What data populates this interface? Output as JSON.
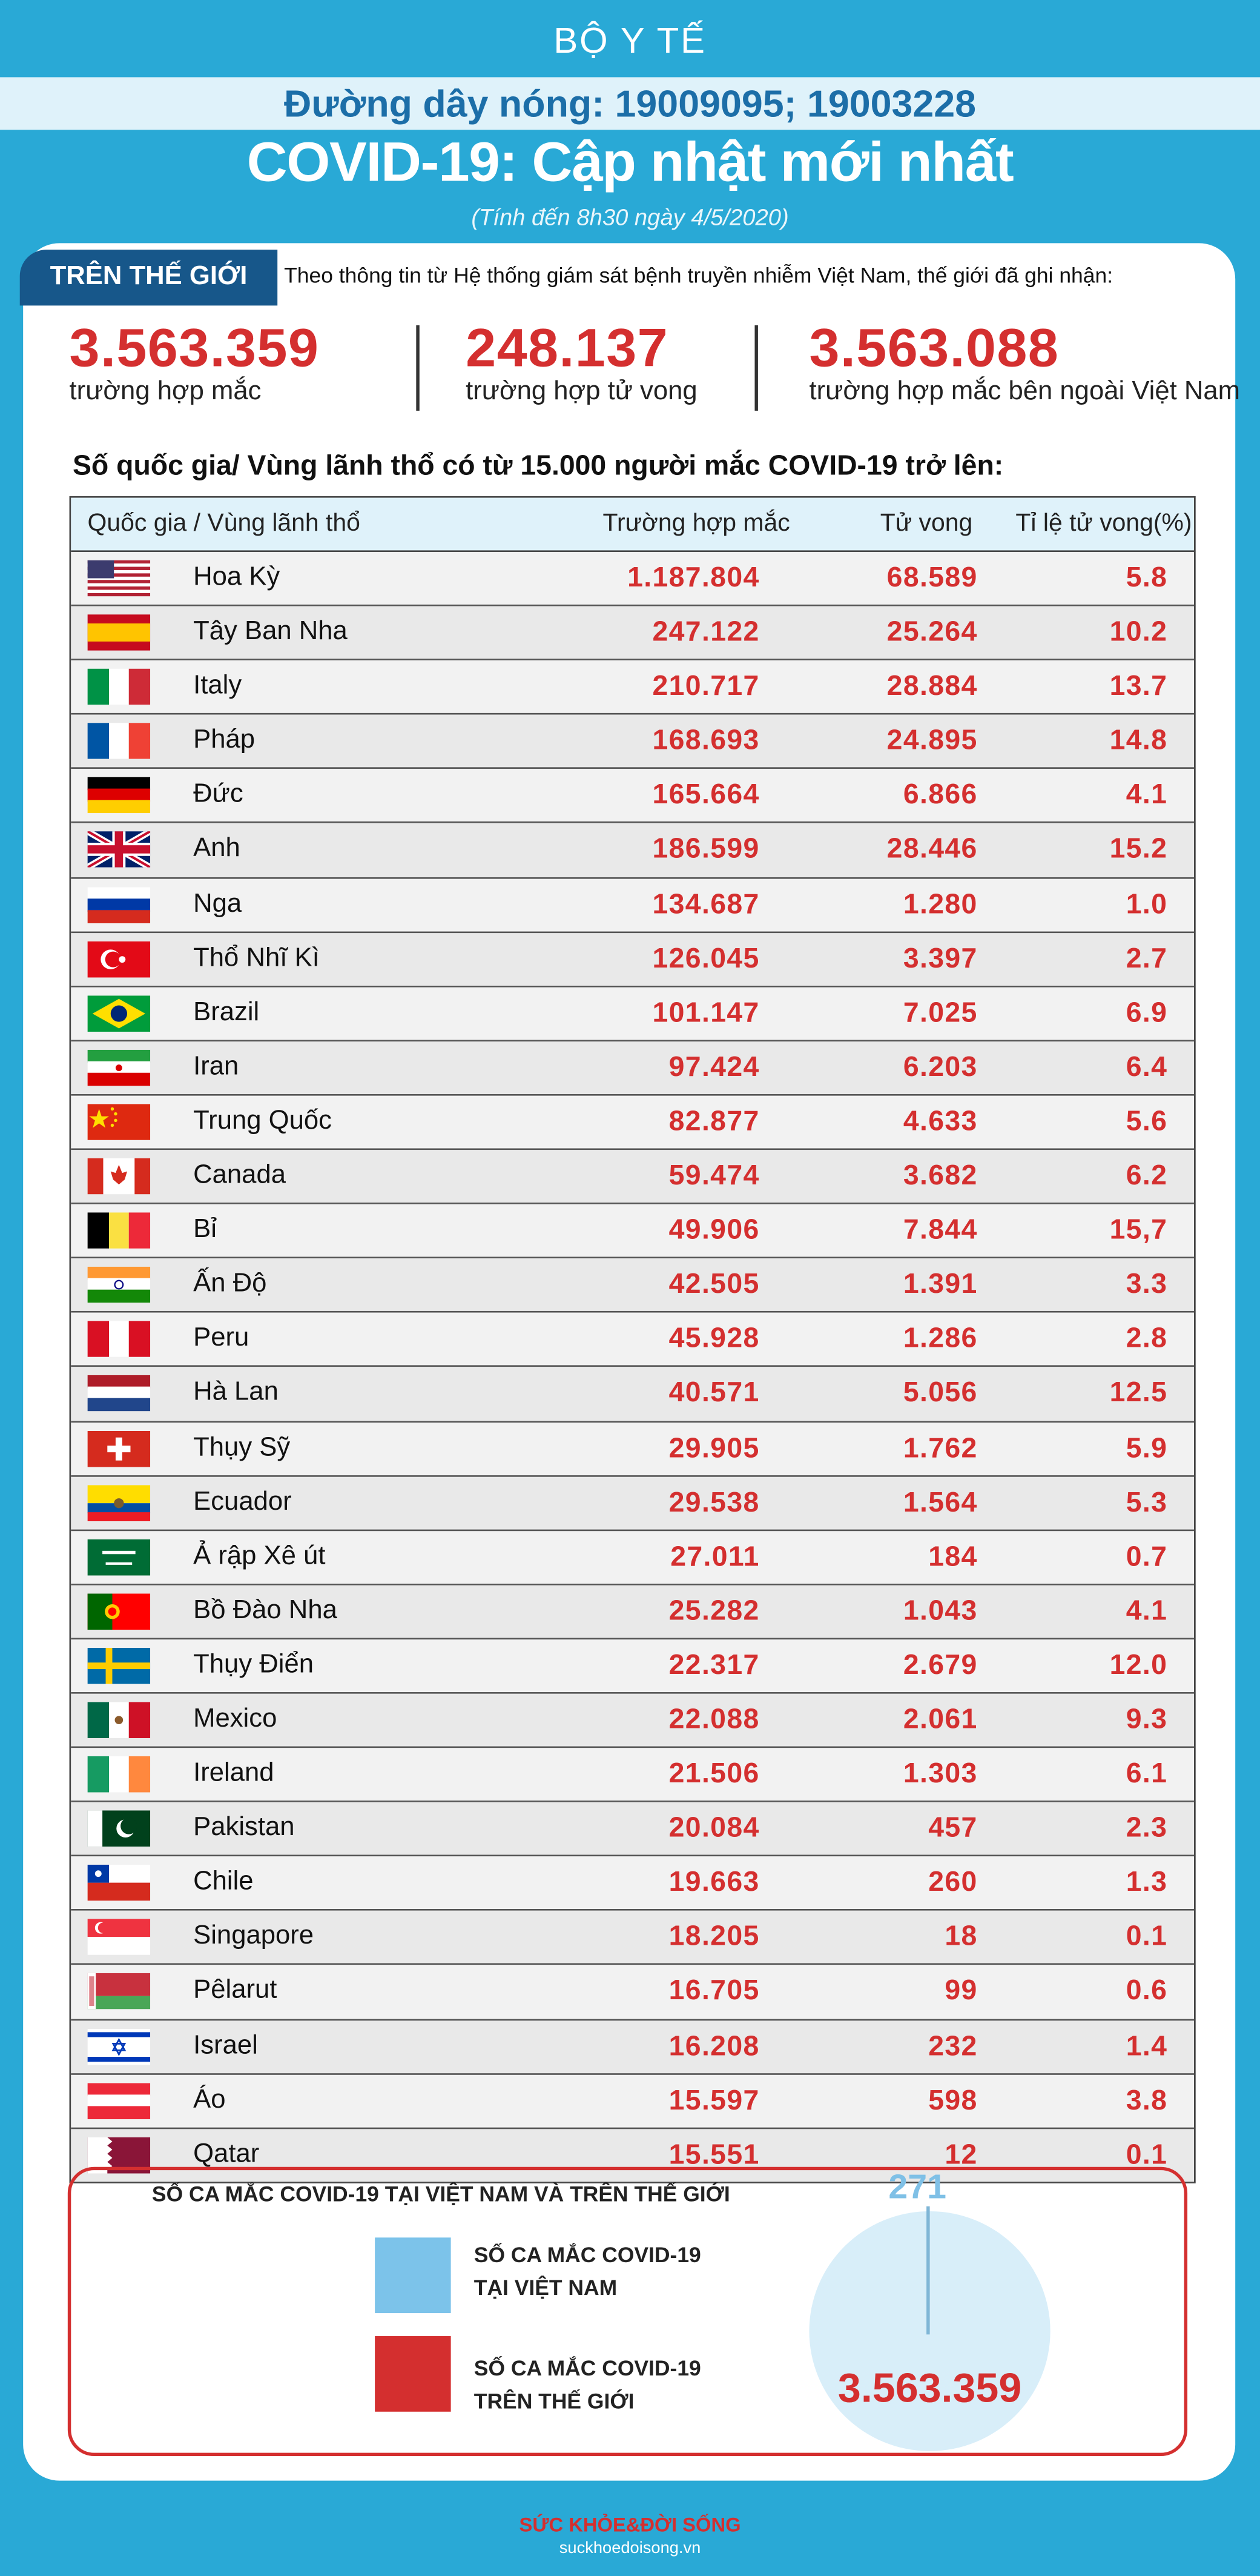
{
  "header": {
    "ministry": "BỘ Y TẾ",
    "hotline": "Đường dây nóng: 19009095; 19003228",
    "title": "COVID-19: Cập nhật mới nhất",
    "as_of": "(Tính đến 8h30 ngày 4/5/2020)"
  },
  "world": {
    "tag": "TRÊN THẾ GIỚI",
    "intro": "Theo thông tin từ Hệ thống giám sát bệnh truyền nhiễm Việt Nam, thế giới đã ghi nhận:",
    "stats": [
      {
        "value": "3.563.359",
        "label": "trường hợp mắc"
      },
      {
        "value": "248.137",
        "label": "trường hợp tử vong"
      },
      {
        "value": "3.563.088",
        "label": "trường hợp  mắc bên ngoài Việt Nam"
      }
    ]
  },
  "table": {
    "subtitle": "Số quốc gia/ Vùng lãnh thổ có từ 15.000 người  mắc COVID-19 trở lên:",
    "headers": {
      "country": "Quốc gia / Vùng lãnh thổ",
      "cases": "Trường hợp mắc",
      "deaths": "Tử vong",
      "rate": "Tỉ lệ tử vong(%)"
    },
    "rows": [
      {
        "flag": "usa-flag-icon",
        "name": "Hoa Kỳ",
        "cases": "1.187.804",
        "deaths": "68.589",
        "rate": "5.8"
      },
      {
        "flag": "spain-flag-icon",
        "name": "Tây Ban Nha",
        "cases": "247.122",
        "deaths": "25.264",
        "rate": "10.2"
      },
      {
        "flag": "italy-flag-icon",
        "name": "Italy",
        "cases": "210.717",
        "deaths": "28.884",
        "rate": "13.7"
      },
      {
        "flag": "france-flag-icon",
        "name": "Pháp",
        "cases": "168.693",
        "deaths": "24.895",
        "rate": "14.8"
      },
      {
        "flag": "germany-flag-icon",
        "name": "Đức",
        "cases": "165.664",
        "deaths": "6.866",
        "rate": "4.1"
      },
      {
        "flag": "uk-flag-icon",
        "name": "Anh",
        "cases": "186.599",
        "deaths": "28.446",
        "rate": "15.2"
      },
      {
        "flag": "russia-flag-icon",
        "name": "Nga",
        "cases": "134.687",
        "deaths": "1.280",
        "rate": "1.0"
      },
      {
        "flag": "turkey-flag-icon",
        "name": "Thổ Nhĩ Kì",
        "cases": "126.045",
        "deaths": "3.397",
        "rate": "2.7"
      },
      {
        "flag": "brazil-flag-icon",
        "name": "Brazil",
        "cases": "101.147",
        "deaths": "7.025",
        "rate": "6.9"
      },
      {
        "flag": "iran-flag-icon",
        "name": "Iran",
        "cases": "97.424",
        "deaths": "6.203",
        "rate": "6.4"
      },
      {
        "flag": "china-flag-icon",
        "name": "Trung Quốc",
        "cases": "82.877",
        "deaths": "4.633",
        "rate": "5.6"
      },
      {
        "flag": "canada-flag-icon",
        "name": "Canada",
        "cases": "59.474",
        "deaths": "3.682",
        "rate": "6.2"
      },
      {
        "flag": "belgium-flag-icon",
        "name": "Bỉ",
        "cases": "49.906",
        "deaths": "7.844",
        "rate": "15,7"
      },
      {
        "flag": "india-flag-icon",
        "name": "Ấn Độ",
        "cases": "42.505",
        "deaths": "1.391",
        "rate": "3.3"
      },
      {
        "flag": "peru-flag-icon",
        "name": "Peru",
        "cases": "45.928",
        "deaths": "1.286",
        "rate": "2.8"
      },
      {
        "flag": "netherlands-flag-icon",
        "name": "Hà Lan",
        "cases": "40.571",
        "deaths": "5.056",
        "rate": "12.5"
      },
      {
        "flag": "switzerland-flag-icon",
        "name": "Thụy Sỹ",
        "cases": "29.905",
        "deaths": "1.762",
        "rate": "5.9"
      },
      {
        "flag": "ecuador-flag-icon",
        "name": "Ecuador",
        "cases": "29.538",
        "deaths": "1.564",
        "rate": "5.3"
      },
      {
        "flag": "saudi-arabia-flag-icon",
        "name": "Ả rập Xê út",
        "cases": "27.011",
        "deaths": "184",
        "rate": "0.7"
      },
      {
        "flag": "portugal-flag-icon",
        "name": "Bồ Đào Nha",
        "cases": "25.282",
        "deaths": "1.043",
        "rate": "4.1"
      },
      {
        "flag": "sweden-flag-icon",
        "name": "Thụy Điển",
        "cases": "22.317",
        "deaths": "2.679",
        "rate": "12.0"
      },
      {
        "flag": "mexico-flag-icon",
        "name": "Mexico",
        "cases": "22.088",
        "deaths": "2.061",
        "rate": "9.3"
      },
      {
        "flag": "ireland-flag-icon",
        "name": "Ireland",
        "cases": "21.506",
        "deaths": "1.303",
        "rate": "6.1"
      },
      {
        "flag": "pakistan-flag-icon",
        "name": "Pakistan",
        "cases": "20.084",
        "deaths": "457",
        "rate": "2.3"
      },
      {
        "flag": "chile-flag-icon",
        "name": "Chile",
        "cases": "19.663",
        "deaths": "260",
        "rate": "1.3"
      },
      {
        "flag": "singapore-flag-icon",
        "name": "Singapore",
        "cases": "18.205",
        "deaths": "18",
        "rate": "0.1"
      },
      {
        "flag": "belarus-flag-icon",
        "name": "Pêlarut",
        "cases": "16.705",
        "deaths": "99",
        "rate": "0.6"
      },
      {
        "flag": "israel-flag-icon",
        "name": "Israel",
        "cases": "16.208",
        "deaths": "232",
        "rate": "1.4"
      },
      {
        "flag": "austria-flag-icon",
        "name": "Áo",
        "cases": "15.597",
        "deaths": "598",
        "rate": "3.8"
      },
      {
        "flag": "qatar-flag-icon",
        "name": "Qatar",
        "cases": "15.551",
        "deaths": "12",
        "rate": "0.1"
      }
    ]
  },
  "comparison": {
    "title": "SỐ CA MẮC COVID-19 TẠI VIỆT NAM VÀ TRÊN THẾ GIỚI",
    "legend_vn": "SỐ CA MẮC COVID-19 TẠI VIỆT NAM",
    "legend_world": "SỐ CA MẮC COVID-19 TRÊN THẾ GIỚI",
    "vn_value": "271",
    "world_value": "3.563.359",
    "colors": {
      "vn": "#7cc3ea",
      "world": "#d42f2f"
    }
  },
  "footer": {
    "logo": "SỨC KHỎE&ĐỜI SỐNG",
    "site": "suckhoedoisong.vn"
  }
}
